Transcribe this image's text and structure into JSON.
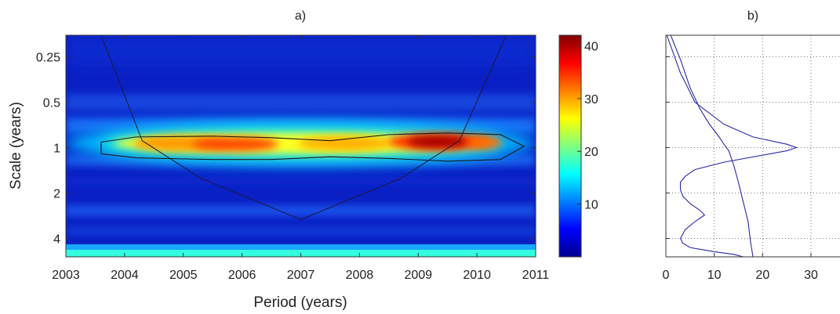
{
  "chart_data": [
    {
      "type": "heatmap",
      "title": "a)",
      "xlabel": "Period (years)",
      "ylabel": "Scale (years)",
      "x_ticks": [
        "2003",
        "2004",
        "2005",
        "2006",
        "2007",
        "2008",
        "2009",
        "2010",
        "2011"
      ],
      "x_range": [
        2003,
        2011
      ],
      "y_scale": "log2",
      "y_ticks": [
        "0.25",
        "0.5",
        "1",
        "2",
        "4"
      ],
      "y_tick_values": [
        0.25,
        0.5,
        1,
        2,
        4
      ],
      "y_range": [
        0.18,
        5.3
      ],
      "colorbar": {
        "ticks": [
          "10",
          "20",
          "30",
          "40"
        ],
        "tick_values": [
          10,
          20,
          30,
          40
        ],
        "range": [
          0,
          42
        ],
        "colormap": "jet"
      },
      "cone_of_influence": [
        [
          2003.6,
          0.18
        ],
        [
          2004.3,
          0.9
        ],
        [
          2005.3,
          1.6
        ],
        [
          2007.0,
          3.0
        ],
        [
          2008.7,
          1.6
        ],
        [
          2009.7,
          0.9
        ],
        [
          2010.5,
          0.18
        ]
      ],
      "significance_contour": [
        [
          2003.6,
          0.92
        ],
        [
          2004.2,
          0.85
        ],
        [
          2005.5,
          0.84
        ],
        [
          2006.5,
          0.86
        ],
        [
          2007.5,
          0.9
        ],
        [
          2008.5,
          0.82
        ],
        [
          2009.5,
          0.8
        ],
        [
          2010.4,
          0.82
        ],
        [
          2010.8,
          0.98
        ],
        [
          2010.4,
          1.2
        ],
        [
          2009.5,
          1.23
        ],
        [
          2008.5,
          1.18
        ],
        [
          2007.5,
          1.15
        ],
        [
          2006.5,
          1.2
        ],
        [
          2005.5,
          1.2
        ],
        [
          2004.2,
          1.17
        ],
        [
          2003.6,
          1.1
        ]
      ],
      "power_features": [
        {
          "x": 2009.2,
          "scale": 1.0,
          "power": 40
        },
        {
          "x": 2006.0,
          "scale": 1.0,
          "power": 35
        },
        {
          "x": 2004.6,
          "scale": 1.0,
          "power": 26
        },
        {
          "x": 2007.6,
          "scale": 1.0,
          "power": 24
        },
        {
          "x": 2010.3,
          "scale": 1.0,
          "power": 25
        }
      ]
    },
    {
      "type": "line",
      "title": "b)",
      "xlabel": "",
      "ylabel": "",
      "x_ticks": [
        "0",
        "10",
        "20",
        "30"
      ],
      "x_tick_values": [
        0,
        10,
        20,
        30
      ],
      "xlim": [
        0,
        36
      ],
      "y_scale": "log2",
      "ylim": [
        0.18,
        5.3
      ],
      "grid": true,
      "series": [
        {
          "x": [
            0.2,
            2,
            3,
            4,
            6,
            12,
            18,
            25,
            27,
            25,
            12,
            6,
            4,
            3,
            3,
            3.5,
            5,
            7,
            8,
            6,
            4,
            3,
            3.5,
            5,
            10,
            14,
            16
          ],
          "y": [
            0.18,
            0.26,
            0.32,
            0.37,
            0.5,
            0.7,
            0.85,
            0.95,
            1.0,
            1.05,
            1.25,
            1.4,
            1.55,
            1.7,
            1.9,
            2.1,
            2.35,
            2.6,
            2.8,
            3.1,
            3.5,
            4.0,
            4.3,
            4.6,
            4.9,
            5.1,
            5.3
          ]
        },
        {
          "x": [
            1,
            3,
            5,
            7,
            9,
            11,
            12,
            13,
            14,
            15,
            16,
            17,
            17.5,
            18
          ],
          "y": [
            0.18,
            0.26,
            0.4,
            0.55,
            0.7,
            0.85,
            0.95,
            1.05,
            1.3,
            1.7,
            2.3,
            3.1,
            4.2,
            5.3
          ]
        }
      ]
    }
  ]
}
